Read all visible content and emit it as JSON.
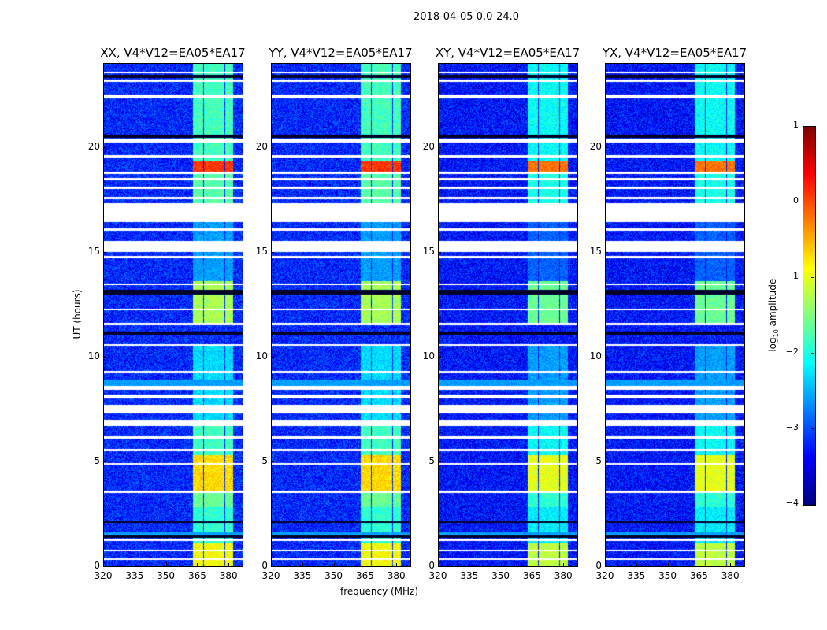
{
  "chart_data": {
    "type": "heatmap",
    "suptitle": "2018-04-05 0.0-24.0",
    "panels": [
      {
        "title": "XX, V4*V12=EA05*EA17"
      },
      {
        "title": "YY, V4*V12=EA05*EA17"
      },
      {
        "title": "XY, V4*V12=EA05*EA17"
      },
      {
        "title": "YX, V4*V12=EA05*EA17"
      }
    ],
    "xlabel": "frequency (MHz)",
    "ylabel": "UT (hours)",
    "xlim": [
      320,
      386.7
    ],
    "ylim": [
      0,
      24
    ],
    "xticks": [
      "320",
      "335",
      "350",
      "365",
      "380"
    ],
    "xtick_values": [
      320,
      335,
      350,
      365,
      380
    ],
    "yticks": [
      "0",
      "5",
      "10",
      "15",
      "20"
    ],
    "ytick_values": [
      0,
      5,
      10,
      15,
      20
    ],
    "colorbar": {
      "label_prefix": "log",
      "label_sub": "10",
      "label_suffix": " amplitude",
      "range": [
        -4,
        1
      ],
      "ticks": [
        "1",
        "0",
        "−1",
        "−2",
        "−3",
        "−4"
      ],
      "tick_values": [
        1,
        0,
        -1,
        -2,
        -3,
        -4
      ],
      "colormap": "jet"
    },
    "background_log_amp": -3.2,
    "signal_band_mhz": [
      [
        363,
        368
      ],
      [
        368.3,
        373
      ],
      [
        373.3,
        378
      ],
      [
        378.3,
        382
      ]
    ],
    "signal_activity": [
      {
        "t": [
          0,
          1.1
        ],
        "level": -0.9
      },
      {
        "t": [
          1.1,
          2.8
        ],
        "level": -1.9
      },
      {
        "t": [
          2.8,
          3.5
        ],
        "level": -1.6
      },
      {
        "t": [
          3.5,
          5.3
        ],
        "level": -0.7
      },
      {
        "t": [
          5.3,
          6.7
        ],
        "level": -1.8
      },
      {
        "t": [
          6.7,
          10.5
        ],
        "level": -2.3
      },
      {
        "t": [
          11.5,
          13.6
        ],
        "level": -1.3
      },
      {
        "t": [
          13.6,
          16.5
        ],
        "level": -2.6
      },
      {
        "t": [
          17.3,
          18.8
        ],
        "level": -1.7
      },
      {
        "t": [
          18.8,
          19.3
        ],
        "level": 0.1
      },
      {
        "t": [
          19.3,
          24
        ],
        "level": -1.8
      }
    ],
    "flagged_white_hours": [
      [
        0.3,
        0.38
      ],
      [
        0.72,
        0.8
      ],
      [
        1.2,
        1.3
      ],
      [
        3.5,
        3.6
      ],
      [
        4.85,
        4.92
      ],
      [
        5.5,
        5.6
      ],
      [
        6.1,
        6.2
      ],
      [
        6.7,
        7.0
      ],
      [
        7.3,
        7.7
      ],
      [
        8.0,
        8.2
      ],
      [
        8.4,
        8.6
      ],
      [
        9.2,
        9.3
      ],
      [
        10.5,
        10.6
      ],
      [
        11.5,
        11.6
      ],
      [
        12.2,
        12.3
      ],
      [
        13.4,
        13.5
      ],
      [
        14.7,
        14.8
      ],
      [
        15.0,
        15.5
      ],
      [
        16.0,
        16.1
      ],
      [
        16.4,
        17.3
      ],
      [
        17.5,
        17.6
      ],
      [
        18.0,
        18.1
      ],
      [
        18.4,
        18.5
      ],
      [
        18.7,
        18.8
      ],
      [
        19.5,
        19.6
      ],
      [
        20.2,
        20.4
      ],
      [
        22.3,
        22.5
      ],
      [
        23.1,
        23.2
      ],
      [
        23.5,
        23.6
      ]
    ],
    "flagged_black_hours": [
      [
        1.35,
        1.45
      ],
      [
        2.05,
        2.15
      ],
      [
        11.05,
        11.2
      ],
      [
        12.95,
        13.2
      ],
      [
        20.45,
        20.6
      ],
      [
        23.3,
        23.45
      ]
    ],
    "flagged_cyan_hours": [
      [
        1.45,
        1.6
      ],
      [
        8.6,
        8.9
      ]
    ]
  }
}
